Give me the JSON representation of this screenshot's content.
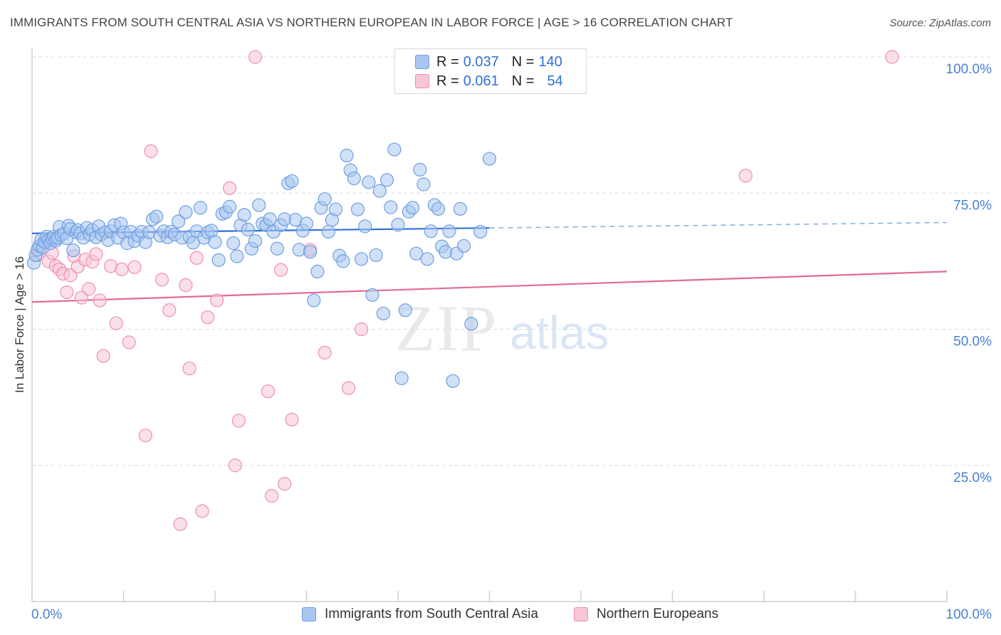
{
  "header": {
    "title": "IMMIGRANTS FROM SOUTH CENTRAL ASIA VS NORTHERN EUROPEAN IN LABOR FORCE | AGE > 16 CORRELATION CHART",
    "source": "Source: ZipAtlas.com"
  },
  "watermark": {
    "zip": "ZIP",
    "atlas": "atlas"
  },
  "legend": {
    "rows": [
      {
        "r_label": "R =",
        "r_value": "0.037",
        "n_label": "N =",
        "n_value": "140",
        "color": "#a9c6f0",
        "stroke": "#6f9fe0"
      },
      {
        "r_label": "R =",
        "r_value": "0.061",
        "n_label": "N =",
        "n_value": "54",
        "color": "#f8c6d6",
        "stroke": "#ee8fb0"
      }
    ]
  },
  "bottom_legend": {
    "items": [
      {
        "label": "Immigrants from South Central Asia",
        "color": "#a9c6f0",
        "stroke": "#6f9fe0"
      },
      {
        "label": "Northern Europeans",
        "color": "#f8c6d6",
        "stroke": "#ee8fb0"
      }
    ]
  },
  "chart_data": {
    "type": "scatter",
    "title": "IMMIGRANTS FROM SOUTH CENTRAL ASIA VS NORTHERN EUROPEAN IN LABOR FORCE | AGE > 16 CORRELATION CHART",
    "xlabel": "",
    "ylabel": "In Labor Force | Age > 16",
    "xlim": [
      0,
      100
    ],
    "ylim": [
      0,
      100
    ],
    "x_tick_labels": [
      "0.0%",
      "100.0%"
    ],
    "y_ticks": [
      25,
      50,
      75,
      100
    ],
    "y_tick_labels": [
      "25.0%",
      "50.0%",
      "75.0%",
      "100.0%"
    ],
    "grid": true,
    "legend_placement": "top-center",
    "series": [
      {
        "name": "Immigrants from South Central Asia",
        "color": "#6f9fe0",
        "fill": "#a9c6f0",
        "trend": {
          "x0": 0,
          "y0": 67.6,
          "x1": 50,
          "y1": 68.6,
          "x_end": 100,
          "y_end": 69.6,
          "solid_until": 50
        },
        "points": [
          [
            0.2,
            62.2
          ],
          [
            0.4,
            63.6
          ],
          [
            0.6,
            64.6
          ],
          [
            0.8,
            65.3
          ],
          [
            1.0,
            66.4
          ],
          [
            1.2,
            65.0
          ],
          [
            1.4,
            66.0
          ],
          [
            1.6,
            67.0
          ],
          [
            1.8,
            66.4
          ],
          [
            2.0,
            65.8
          ],
          [
            2.2,
            66.6
          ],
          [
            2.4,
            67.0
          ],
          [
            2.6,
            66.3
          ],
          [
            2.8,
            66.8
          ],
          [
            3.0,
            68.8
          ],
          [
            3.2,
            67.3
          ],
          [
            3.5,
            67.6
          ],
          [
            3.8,
            66.7
          ],
          [
            4.0,
            69.0
          ],
          [
            4.2,
            68.4
          ],
          [
            4.5,
            64.5
          ],
          [
            4.8,
            67.8
          ],
          [
            5.0,
            68.2
          ],
          [
            5.3,
            67.6
          ],
          [
            5.6,
            66.8
          ],
          [
            6.0,
            68.6
          ],
          [
            6.3,
            67.4
          ],
          [
            6.6,
            68.2
          ],
          [
            7.0,
            66.9
          ],
          [
            7.3,
            68.9
          ],
          [
            7.6,
            67.4
          ],
          [
            8.0,
            67.8
          ],
          [
            8.3,
            66.4
          ],
          [
            8.6,
            68.0
          ],
          [
            9.0,
            69.1
          ],
          [
            9.4,
            66.8
          ],
          [
            9.7,
            69.4
          ],
          [
            10.0,
            67.8
          ],
          [
            10.4,
            65.8
          ],
          [
            10.8,
            67.9
          ],
          [
            11.2,
            66.2
          ],
          [
            11.6,
            67.2
          ],
          [
            12.0,
            67.9
          ],
          [
            12.4,
            66.0
          ],
          [
            12.8,
            67.8
          ],
          [
            13.2,
            70.2
          ],
          [
            13.6,
            70.7
          ],
          [
            14.0,
            67.2
          ],
          [
            14.4,
            68.0
          ],
          [
            14.8,
            66.9
          ],
          [
            15.2,
            67.9
          ],
          [
            15.6,
            67.4
          ],
          [
            16.0,
            69.8
          ],
          [
            16.4,
            66.8
          ],
          [
            16.8,
            71.5
          ],
          [
            17.2,
            67.0
          ],
          [
            17.6,
            65.9
          ],
          [
            18.0,
            68.0
          ],
          [
            18.4,
            72.3
          ],
          [
            18.8,
            66.8
          ],
          [
            19.2,
            67.8
          ],
          [
            19.6,
            68.1
          ],
          [
            20.0,
            66.0
          ],
          [
            20.4,
            62.7
          ],
          [
            20.8,
            71.2
          ],
          [
            21.2,
            71.5
          ],
          [
            21.6,
            72.5
          ],
          [
            22.0,
            65.8
          ],
          [
            22.4,
            63.4
          ],
          [
            22.8,
            69.1
          ],
          [
            23.2,
            71.0
          ],
          [
            23.6,
            68.3
          ],
          [
            24.0,
            64.8
          ],
          [
            24.4,
            66.2
          ],
          [
            24.8,
            72.8
          ],
          [
            25.2,
            69.4
          ],
          [
            25.6,
            69.1
          ],
          [
            26.0,
            70.2
          ],
          [
            26.4,
            67.9
          ],
          [
            26.8,
            64.8
          ],
          [
            27.2,
            69.1
          ],
          [
            27.6,
            70.2
          ],
          [
            28.0,
            76.8
          ],
          [
            28.4,
            77.2
          ],
          [
            28.8,
            70.1
          ],
          [
            29.2,
            64.6
          ],
          [
            29.6,
            68.1
          ],
          [
            30.0,
            69.4
          ],
          [
            30.4,
            64.2
          ],
          [
            30.8,
            55.3
          ],
          [
            31.2,
            60.6
          ],
          [
            31.6,
            72.3
          ],
          [
            32.0,
            73.9
          ],
          [
            32.4,
            67.9
          ],
          [
            32.8,
            70.1
          ],
          [
            33.2,
            72.0
          ],
          [
            33.6,
            63.5
          ],
          [
            34.0,
            62.5
          ],
          [
            34.4,
            81.9
          ],
          [
            34.8,
            79.2
          ],
          [
            35.2,
            77.7
          ],
          [
            35.6,
            72.0
          ],
          [
            36.0,
            62.9
          ],
          [
            36.4,
            68.9
          ],
          [
            36.8,
            77.0
          ],
          [
            37.2,
            56.3
          ],
          [
            37.6,
            63.6
          ],
          [
            38.0,
            75.4
          ],
          [
            38.4,
            52.9
          ],
          [
            38.8,
            77.4
          ],
          [
            39.2,
            72.4
          ],
          [
            39.6,
            83.0
          ],
          [
            40.0,
            69.2
          ],
          [
            40.4,
            41.0
          ],
          [
            40.8,
            53.5
          ],
          [
            41.2,
            71.6
          ],
          [
            41.6,
            72.3
          ],
          [
            42.0,
            63.9
          ],
          [
            42.4,
            79.3
          ],
          [
            42.8,
            76.6
          ],
          [
            43.2,
            62.9
          ],
          [
            43.6,
            68.0
          ],
          [
            44.0,
            72.8
          ],
          [
            44.4,
            72.1
          ],
          [
            44.8,
            65.2
          ],
          [
            45.2,
            64.2
          ],
          [
            45.6,
            68.0
          ],
          [
            46.0,
            40.5
          ],
          [
            46.4,
            63.9
          ],
          [
            46.8,
            72.1
          ],
          [
            47.2,
            65.3
          ],
          [
            48.0,
            51.0
          ],
          [
            49.0,
            67.9
          ],
          [
            50.0,
            81.3
          ]
        ]
      },
      {
        "name": "Northern Europeans",
        "color": "#ee8fb0",
        "fill": "#f8c6d6",
        "trend": {
          "x0": 0,
          "y0": 55.0,
          "x1": 100,
          "y1": 60.6
        },
        "points": [
          [
            0.6,
            63.6
          ],
          [
            1.0,
            65.2
          ],
          [
            1.4,
            66.4
          ],
          [
            1.8,
            62.5
          ],
          [
            2.2,
            64.0
          ],
          [
            2.6,
            61.6
          ],
          [
            3.0,
            61.0
          ],
          [
            3.4,
            60.2
          ],
          [
            3.8,
            56.8
          ],
          [
            4.2,
            59.9
          ],
          [
            4.6,
            63.4
          ],
          [
            5.0,
            61.5
          ],
          [
            5.4,
            55.8
          ],
          [
            5.8,
            62.8
          ],
          [
            6.2,
            57.4
          ],
          [
            6.6,
            62.4
          ],
          [
            7.0,
            63.8
          ],
          [
            7.4,
            55.3
          ],
          [
            7.8,
            45.1
          ],
          [
            8.6,
            61.6
          ],
          [
            9.2,
            51.1
          ],
          [
            9.8,
            61.0
          ],
          [
            10.6,
            47.6
          ],
          [
            11.2,
            61.4
          ],
          [
            12.4,
            30.5
          ],
          [
            13.0,
            82.7
          ],
          [
            14.2,
            59.1
          ],
          [
            15.0,
            53.5
          ],
          [
            16.2,
            14.2
          ],
          [
            16.8,
            58.1
          ],
          [
            17.2,
            42.8
          ],
          [
            18.0,
            63.1
          ],
          [
            18.6,
            16.6
          ],
          [
            19.2,
            52.2
          ],
          [
            20.2,
            55.3
          ],
          [
            21.6,
            75.9
          ],
          [
            22.2,
            25.0
          ],
          [
            22.6,
            33.2
          ],
          [
            24.4,
            100.0
          ],
          [
            25.8,
            38.6
          ],
          [
            26.2,
            19.4
          ],
          [
            27.2,
            60.9
          ],
          [
            27.6,
            21.6
          ],
          [
            28.4,
            33.4
          ],
          [
            30.4,
            64.6
          ],
          [
            32.0,
            45.7
          ],
          [
            34.6,
            39.2
          ],
          [
            36.0,
            50.0
          ],
          [
            78.0,
            78.2
          ],
          [
            94.0,
            100.0
          ]
        ]
      }
    ]
  }
}
